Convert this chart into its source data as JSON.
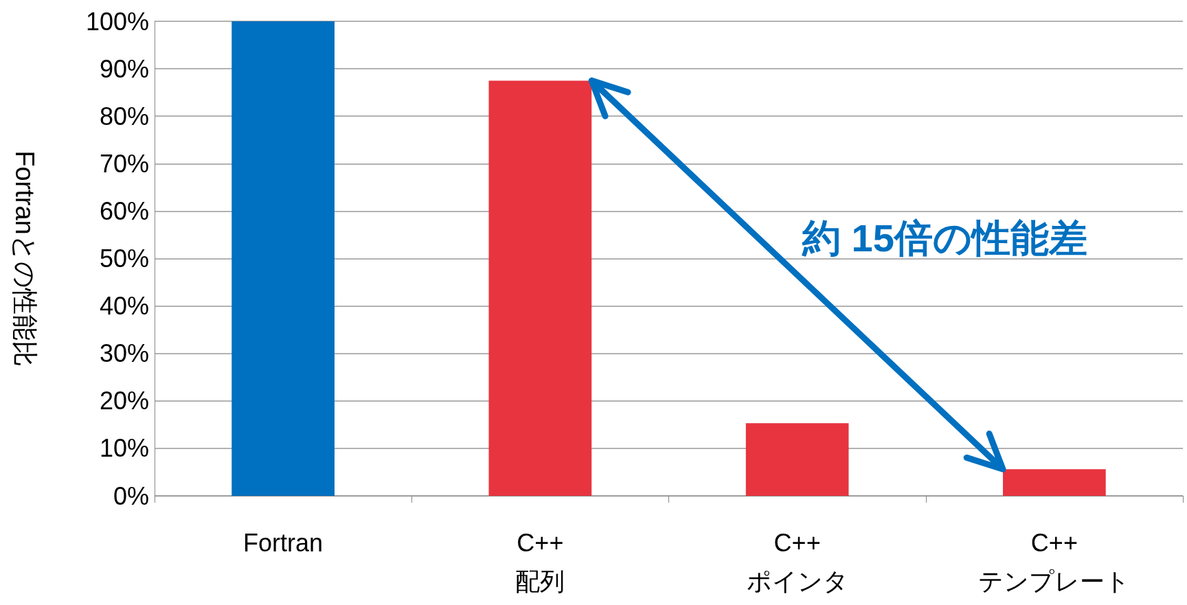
{
  "chart_data": {
    "type": "bar",
    "ylabel": "Fortranとの性能比",
    "categories": [
      "Fortran",
      "C++\n配列",
      "C++\nポインタ",
      "C++\nテンプレート"
    ],
    "values": [
      100,
      87.5,
      15.3,
      5.6
    ],
    "colors": [
      "#0070c0",
      "#e8343f",
      "#e8343f",
      "#e8343f"
    ],
    "ylim": [
      0,
      100
    ],
    "yticks": [
      {
        "value": 0,
        "label": "0%"
      },
      {
        "value": 10,
        "label": "10%"
      },
      {
        "value": 20,
        "label": "20%"
      },
      {
        "value": 30,
        "label": "30%"
      },
      {
        "value": 40,
        "label": "40%"
      },
      {
        "value": 50,
        "label": "50%"
      },
      {
        "value": 60,
        "label": "60%"
      },
      {
        "value": 70,
        "label": "70%"
      },
      {
        "value": 80,
        "label": "80%"
      },
      {
        "value": 90,
        "label": "90%"
      },
      {
        "value": 100,
        "label": "100%"
      }
    ],
    "grid": "y",
    "annotations": [
      "約 15倍の性能差"
    ]
  }
}
